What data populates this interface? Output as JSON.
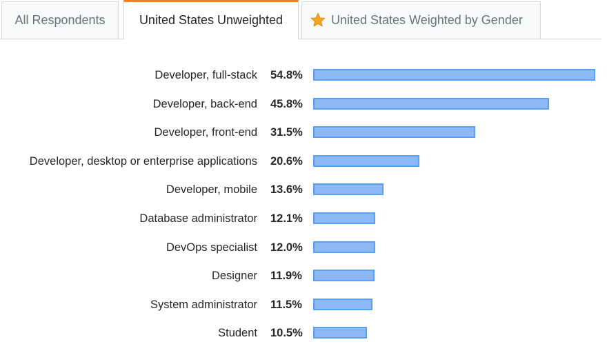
{
  "tabs": [
    {
      "label": "All Respondents",
      "active": false,
      "icon": null
    },
    {
      "label": "United States Unweighted",
      "active": true,
      "icon": null
    },
    {
      "label": "United States Weighted by Gender",
      "active": false,
      "icon": "star-icon"
    }
  ],
  "colors": {
    "bar_fill": "#8cb8f8",
    "bar_border": "#5aa0f0",
    "active_tab_accent": "#f48024",
    "star": "#f5a623"
  },
  "chart_data": {
    "type": "bar",
    "orientation": "horizontal",
    "categories": [
      "Developer, full-stack",
      "Developer, back-end",
      "Developer, front-end",
      "Developer, desktop or enterprise applications",
      "Developer, mobile",
      "Database administrator",
      "DevOps specialist",
      "Designer",
      "System administrator",
      "Student"
    ],
    "values": [
      54.8,
      45.8,
      31.5,
      20.6,
      13.6,
      12.1,
      12.0,
      11.9,
      11.5,
      10.5
    ],
    "value_labels": [
      "54.8%",
      "45.8%",
      "31.5%",
      "20.6%",
      "13.6%",
      "12.1%",
      "12.0%",
      "11.9%",
      "11.5%",
      "10.5%"
    ],
    "title": "",
    "xlabel": "",
    "ylabel": "",
    "xlim": [
      0,
      54.8
    ],
    "grid": false,
    "legend": "none"
  }
}
